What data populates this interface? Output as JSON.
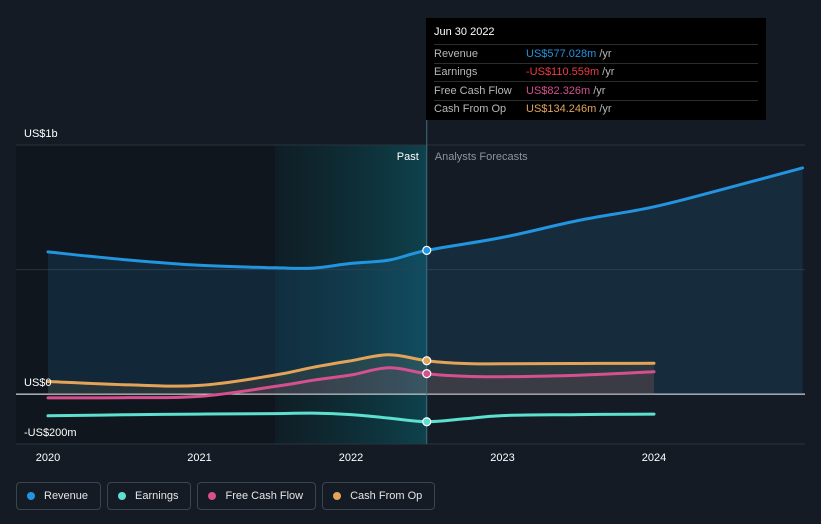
{
  "chart_data": {
    "type": "line",
    "x_range": [
      2019.82,
      2024.98
    ],
    "y_range": [
      -200,
      1000
    ],
    "divider_x": 2022.5,
    "past_highlight_start": 2021.5,
    "y_ticks": [
      {
        "value": 1000,
        "label": "US$1b"
      },
      {
        "value": 0,
        "label": "US$0"
      },
      {
        "value": -200,
        "label": "-US$200m"
      }
    ],
    "x_ticks": [
      {
        "value": 2020,
        "label": "2020"
      },
      {
        "value": 2021,
        "label": "2021"
      },
      {
        "value": 2022,
        "label": "2022"
      },
      {
        "value": 2023,
        "label": "2023"
      },
      {
        "value": 2024,
        "label": "2024"
      }
    ],
    "past_label": "Past",
    "forecast_label": "Analysts Forecasts",
    "series": [
      {
        "name": "Revenue",
        "key": "revenue",
        "color": "#2394df",
        "area": true,
        "points": [
          [
            2020,
            571
          ],
          [
            2020.5,
            540
          ],
          [
            2021,
            517
          ],
          [
            2021.5,
            507
          ],
          [
            2021.75,
            506
          ],
          [
            2022,
            525
          ],
          [
            2022.25,
            538
          ],
          [
            2022.5,
            577.028
          ],
          [
            2023,
            629
          ],
          [
            2023.5,
            697
          ],
          [
            2024,
            752
          ],
          [
            2024.5,
            830
          ],
          [
            2024.98,
            908
          ]
        ]
      },
      {
        "name": "Earnings",
        "key": "earnings",
        "color": "#5de0d0",
        "area": false,
        "points": [
          [
            2020,
            -87
          ],
          [
            2020.5,
            -83
          ],
          [
            2021,
            -80
          ],
          [
            2021.5,
            -78
          ],
          [
            2021.75,
            -76
          ],
          [
            2022,
            -82
          ],
          [
            2022.25,
            -96
          ],
          [
            2022.5,
            -110.559
          ],
          [
            2022.75,
            -99
          ],
          [
            2023,
            -86
          ],
          [
            2023.5,
            -82
          ],
          [
            2024,
            -80
          ]
        ]
      },
      {
        "name": "Free Cash Flow",
        "key": "free_cash_flow",
        "color": "#d5508e",
        "area": true,
        "points": [
          [
            2020,
            -15
          ],
          [
            2020.5,
            -14
          ],
          [
            2021,
            -9
          ],
          [
            2021.5,
            31
          ],
          [
            2021.75,
            56
          ],
          [
            2022,
            77
          ],
          [
            2022.25,
            106
          ],
          [
            2022.5,
            82.326
          ],
          [
            2022.75,
            72
          ],
          [
            2023,
            70
          ],
          [
            2023.5,
            76
          ],
          [
            2024,
            90
          ]
        ]
      },
      {
        "name": "Cash From Op",
        "key": "cash_from_op",
        "color": "#e3a45a",
        "area": true,
        "points": [
          [
            2020,
            51
          ],
          [
            2020.5,
            38
          ],
          [
            2021,
            35
          ],
          [
            2021.5,
            77
          ],
          [
            2021.75,
            108
          ],
          [
            2022,
            134
          ],
          [
            2022.25,
            158
          ],
          [
            2022.5,
            134.246
          ],
          [
            2022.75,
            123
          ],
          [
            2023,
            122
          ],
          [
            2023.5,
            123
          ],
          [
            2024,
            124
          ]
        ]
      }
    ]
  },
  "tooltip": {
    "date": "Jun 30 2022",
    "rows": [
      {
        "name": "Revenue",
        "value": "US$577.028m",
        "unit": "/yr",
        "color": "#2394df"
      },
      {
        "name": "Earnings",
        "value": "-US$110.559m",
        "unit": "/yr",
        "color": "#ef3b45"
      },
      {
        "name": "Free Cash Flow",
        "value": "US$82.326m",
        "unit": "/yr",
        "color": "#d5508e"
      },
      {
        "name": "Cash From Op",
        "value": "US$134.246m",
        "unit": "/yr",
        "color": "#e3a45a"
      }
    ]
  },
  "legend": [
    {
      "label": "Revenue",
      "color": "#2394df"
    },
    {
      "label": "Earnings",
      "color": "#5de0d0"
    },
    {
      "label": "Free Cash Flow",
      "color": "#d5508e"
    },
    {
      "label": "Cash From Op",
      "color": "#e3a45a"
    }
  ]
}
